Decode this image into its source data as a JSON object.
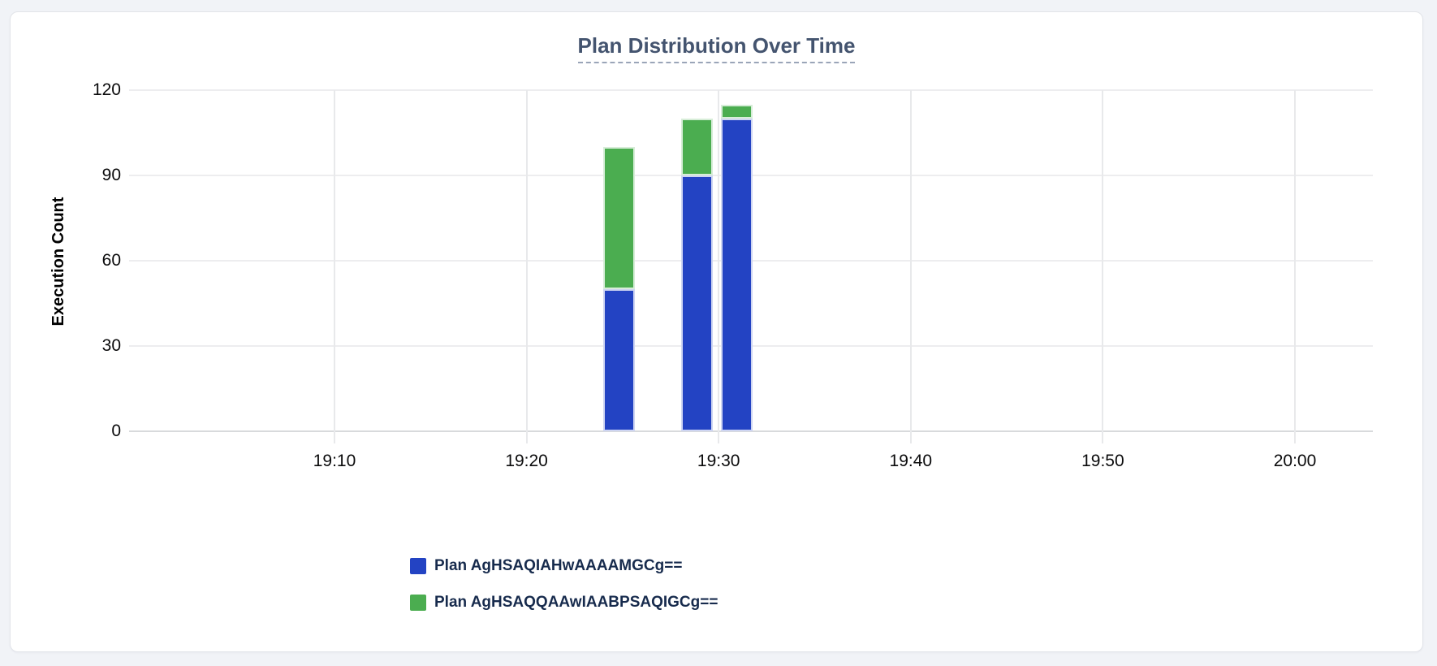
{
  "window": {
    "background_color": "#f1f3f7"
  },
  "card": {
    "background_color": "#ffffff",
    "border_color": "#e2e4e9"
  },
  "chart_data": {
    "type": "bar",
    "stacked": true,
    "title": "Plan Distribution Over Time",
    "title_color": "#44546f",
    "xlabel": "",
    "ylabel": "Execution Count",
    "ylim": [
      0,
      120
    ],
    "y_ticks": [
      0,
      30,
      60,
      90,
      120
    ],
    "x_ticks": [
      "19:10",
      "19:20",
      "19:30",
      "19:40",
      "19:50",
      "20:00"
    ],
    "x_tick_minutes": [
      10,
      20,
      30,
      40,
      50,
      60
    ],
    "grid": true,
    "legend_position": "bottom-left",
    "legend_text_color": "#172b4d",
    "categories": [
      "19:24",
      "19:28",
      "19:30"
    ],
    "bar_start_minutes": [
      24.0,
      28.05,
      30.1
    ],
    "bar_width_minutes": 1.65,
    "series": [
      {
        "name": "Plan AgHSAQIAHwAAAAMGCg==",
        "color": "#2343c3",
        "values": [
          50,
          90,
          110
        ]
      },
      {
        "name": "Plan AgHSAQQAAwIAABPSAQIGCg==",
        "color": "#4bad50",
        "values": [
          50,
          20,
          5
        ]
      }
    ]
  }
}
